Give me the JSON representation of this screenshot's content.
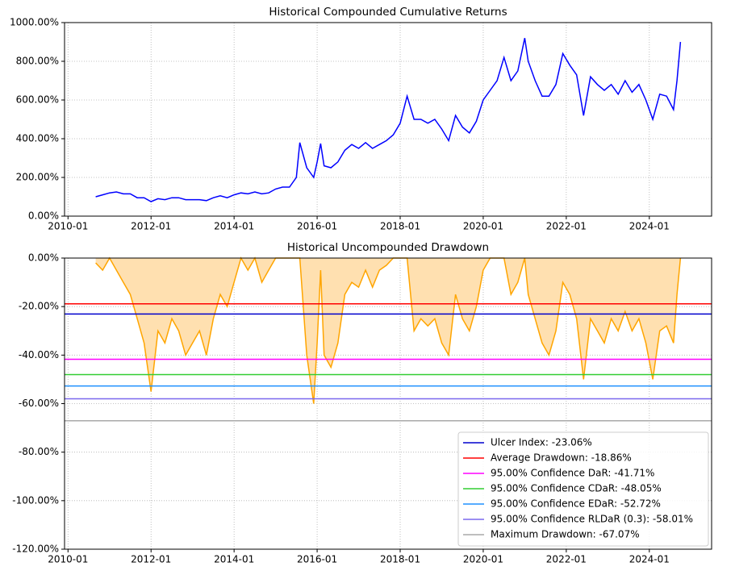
{
  "chart_data": [
    {
      "type": "line",
      "title": "Historical Compounded Cumulative Returns",
      "x": [
        "2010-09",
        "2010-11",
        "2011-01",
        "2011-03",
        "2011-05",
        "2011-07",
        "2011-09",
        "2011-11",
        "2012-01",
        "2012-03",
        "2012-05",
        "2012-07",
        "2012-09",
        "2012-11",
        "2013-01",
        "2013-03",
        "2013-05",
        "2013-07",
        "2013-09",
        "2013-11",
        "2014-01",
        "2014-03",
        "2014-05",
        "2014-07",
        "2014-09",
        "2014-11",
        "2015-01",
        "2015-03",
        "2015-05",
        "2015-07",
        "2015-08",
        "2015-10",
        "2015-12",
        "2016-01",
        "2016-02",
        "2016-03",
        "2016-05",
        "2016-07",
        "2016-09",
        "2016-11",
        "2017-01",
        "2017-03",
        "2017-05",
        "2017-07",
        "2017-09",
        "2017-11",
        "2018-01",
        "2018-03",
        "2018-05",
        "2018-07",
        "2018-09",
        "2018-11",
        "2019-01",
        "2019-03",
        "2019-05",
        "2019-07",
        "2019-09",
        "2019-11",
        "2020-01",
        "2020-03",
        "2020-05",
        "2020-07",
        "2020-09",
        "2020-11",
        "2021-01",
        "2021-02",
        "2021-04",
        "2021-06",
        "2021-08",
        "2021-10",
        "2021-12",
        "2022-02",
        "2022-04",
        "2022-06",
        "2022-08",
        "2022-10",
        "2022-12",
        "2023-02",
        "2023-04",
        "2023-06",
        "2023-08",
        "2023-10",
        "2023-12",
        "2024-02",
        "2024-04",
        "2024-06",
        "2024-08",
        "2024-09",
        "2024-10"
      ],
      "series": [
        {
          "color": "#0000ff",
          "values": [
            100,
            110,
            120,
            125,
            115,
            115,
            95,
            95,
            75,
            90,
            85,
            95,
            95,
            85,
            85,
            85,
            80,
            95,
            105,
            95,
            110,
            120,
            115,
            125,
            115,
            120,
            140,
            150,
            150,
            200,
            380,
            250,
            200,
            280,
            375,
            260,
            250,
            280,
            340,
            370,
            350,
            380,
            350,
            370,
            390,
            420,
            480,
            620,
            500,
            500,
            480,
            500,
            450,
            390,
            520,
            460,
            430,
            490,
            600,
            650,
            700,
            820,
            700,
            750,
            920,
            800,
            700,
            620,
            620,
            680,
            840,
            780,
            730,
            520,
            720,
            680,
            650,
            680,
            630,
            700,
            640,
            680,
            600,
            500,
            630,
            620,
            550,
            700,
            900
          ]
        }
      ],
      "xlim": [
        "2009-12",
        "2025-07"
      ],
      "xticks": [
        "2010-01",
        "2012-01",
        "2014-01",
        "2016-01",
        "2018-01",
        "2020-01",
        "2022-01",
        "2024-01"
      ],
      "ylim": [
        0,
        1000
      ],
      "yticks": [
        {
          "value": 0,
          "label": "0.00%"
        },
        {
          "value": 200,
          "label": "200.00%"
        },
        {
          "value": 400,
          "label": "400.00%"
        },
        {
          "value": 600,
          "label": "600.00%"
        },
        {
          "value": 800,
          "label": "800.00%"
        },
        {
          "value": 1000,
          "label": "1000.00%"
        }
      ],
      "grid": true
    },
    {
      "type": "area",
      "title": "Historical Uncompounded Drawdown",
      "x": [
        "2010-09",
        "2010-11",
        "2011-01",
        "2011-03",
        "2011-05",
        "2011-07",
        "2011-09",
        "2011-11",
        "2012-01",
        "2012-03",
        "2012-05",
        "2012-07",
        "2012-09",
        "2012-11",
        "2013-01",
        "2013-03",
        "2013-05",
        "2013-07",
        "2013-09",
        "2013-11",
        "2014-01",
        "2014-03",
        "2014-05",
        "2014-07",
        "2014-09",
        "2014-11",
        "2015-01",
        "2015-03",
        "2015-05",
        "2015-07",
        "2015-08",
        "2015-10",
        "2015-12",
        "2016-01",
        "2016-02",
        "2016-03",
        "2016-05",
        "2016-07",
        "2016-09",
        "2016-11",
        "2017-01",
        "2017-03",
        "2017-05",
        "2017-07",
        "2017-09",
        "2017-11",
        "2018-01",
        "2018-03",
        "2018-05",
        "2018-07",
        "2018-09",
        "2018-11",
        "2019-01",
        "2019-03",
        "2019-05",
        "2019-07",
        "2019-09",
        "2019-11",
        "2020-01",
        "2020-03",
        "2020-05",
        "2020-07",
        "2020-09",
        "2020-11",
        "2021-01",
        "2021-02",
        "2021-04",
        "2021-06",
        "2021-08",
        "2021-10",
        "2021-12",
        "2022-02",
        "2022-04",
        "2022-06",
        "2022-08",
        "2022-10",
        "2022-12",
        "2023-02",
        "2023-04",
        "2023-06",
        "2023-08",
        "2023-10",
        "2023-12",
        "2024-02",
        "2024-04",
        "2024-06",
        "2024-08",
        "2024-09",
        "2024-10"
      ],
      "series": [
        {
          "color": "#ffa500",
          "fill_color": "#ffe0b0",
          "values": [
            -2,
            -5,
            0,
            -5,
            -10,
            -15,
            -25,
            -35,
            -55,
            -30,
            -35,
            -25,
            -30,
            -40,
            -35,
            -30,
            -40,
            -25,
            -15,
            -20,
            -10,
            0,
            -5,
            0,
            -10,
            -5,
            0,
            0,
            0,
            0,
            0,
            -40,
            -60,
            -35,
            -5,
            -40,
            -45,
            -35,
            -15,
            -10,
            -12,
            -5,
            -12,
            -5,
            -3,
            0,
            0,
            0,
            -30,
            -25,
            -28,
            -25,
            -35,
            -40,
            -15,
            -25,
            -30,
            -20,
            -5,
            0,
            0,
            0,
            -15,
            -10,
            0,
            -15,
            -25,
            -35,
            -40,
            -30,
            -10,
            -15,
            -25,
            -50,
            -25,
            -30,
            -35,
            -25,
            -30,
            -22,
            -30,
            -25,
            -35,
            -50,
            -30,
            -28,
            -35,
            -15,
            0
          ]
        }
      ],
      "hlines": [
        {
          "name": "Ulcer Index: -23.06%",
          "value": -23.06,
          "color": "#0000cd"
        },
        {
          "name": "Average Drawdown: -18.86%",
          "value": -18.86,
          "color": "#ff0000"
        },
        {
          "name": "95.00% Confidence DaR: -41.71%",
          "value": -41.71,
          "color": "#ff00ff"
        },
        {
          "name": "95.00% Confidence CDaR: -48.05%",
          "value": -48.05,
          "color": "#32cd32"
        },
        {
          "name": "95.00% Confidence EDaR: -52.72%",
          "value": -52.72,
          "color": "#1e90ff"
        },
        {
          "name": "95.00% Confidence RLDaR (0.3): -58.01%",
          "value": -58.01,
          "color": "#7b68ee"
        },
        {
          "name": "Maximum Drawdown: -67.07%",
          "value": -67.07,
          "color": "#a9a9a9"
        }
      ],
      "legend": "lower right",
      "xlim": [
        "2009-12",
        "2025-07"
      ],
      "xticks": [
        "2010-01",
        "2012-01",
        "2014-01",
        "2016-01",
        "2018-01",
        "2020-01",
        "2022-01",
        "2024-01"
      ],
      "ylim": [
        -120,
        0
      ],
      "yticks": [
        {
          "value": 0,
          "label": "0.00%"
        },
        {
          "value": -20,
          "label": "-20.00%"
        },
        {
          "value": -40,
          "label": "-40.00%"
        },
        {
          "value": -60,
          "label": "-60.00%"
        },
        {
          "value": -80,
          "label": "-80.00%"
        },
        {
          "value": -100,
          "label": "-100.00%"
        },
        {
          "value": -120,
          "label": "-120.00%"
        }
      ],
      "grid": true
    }
  ]
}
